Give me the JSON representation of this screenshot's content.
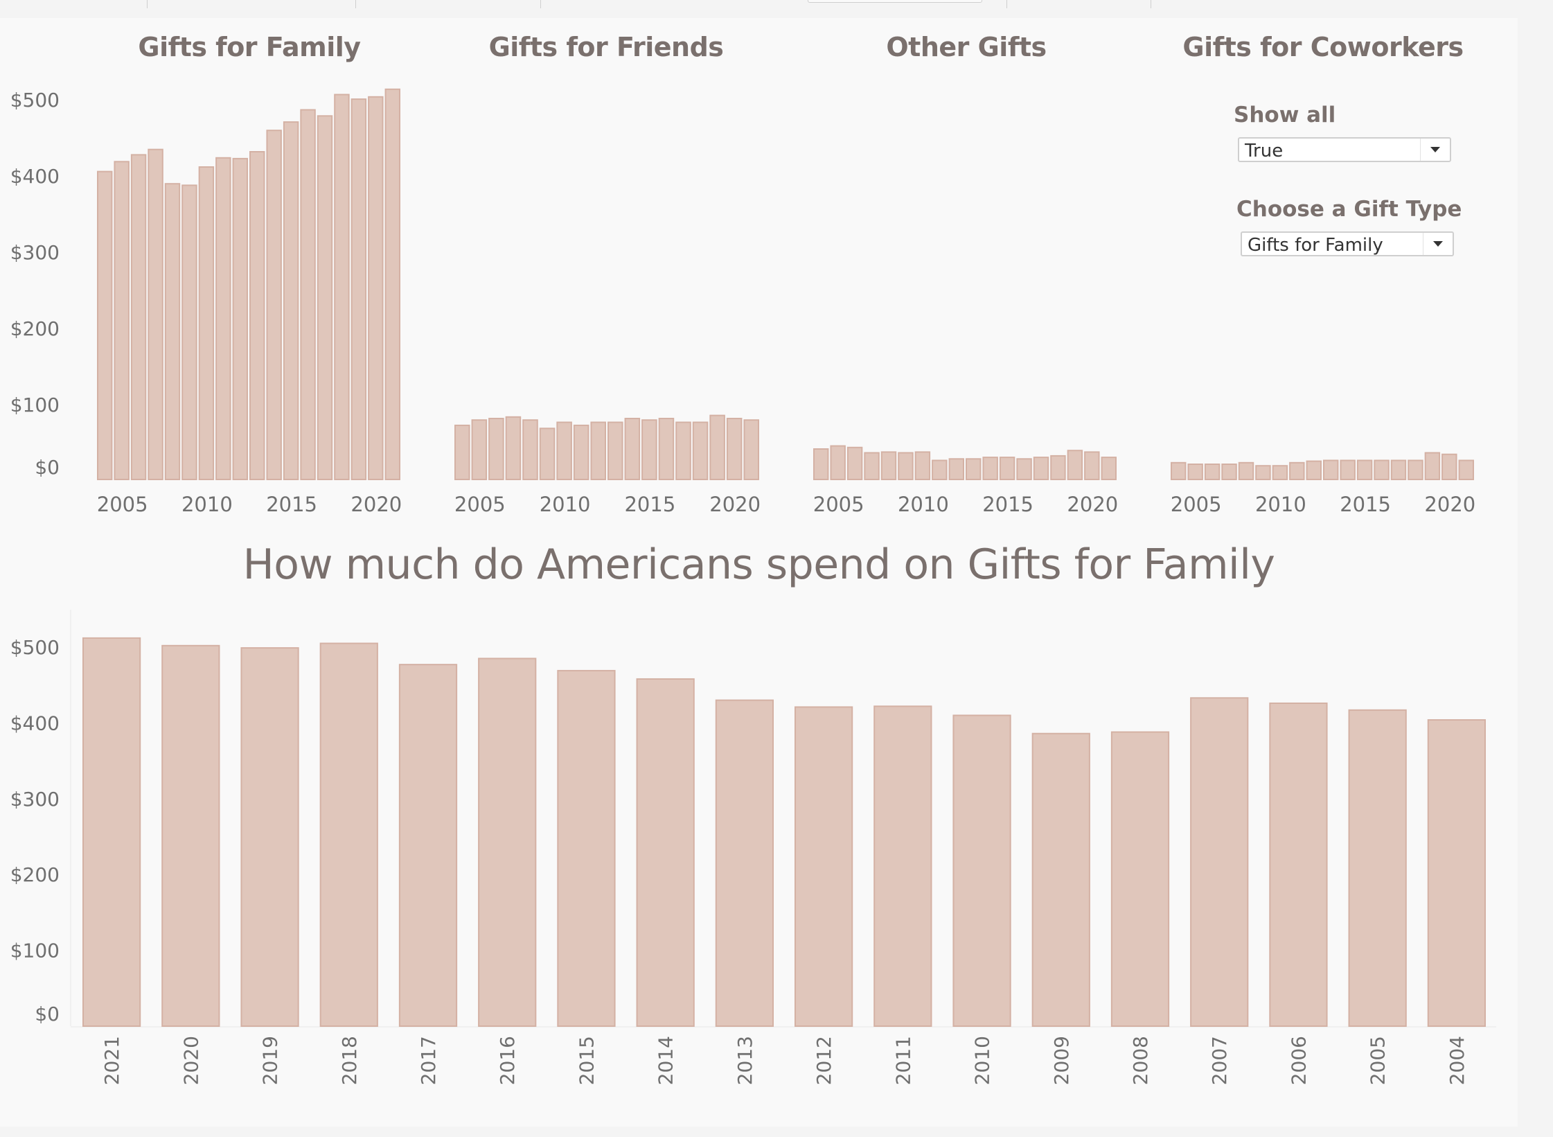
{
  "toolbar": {
    "dividers": 5
  },
  "colors": {
    "bar_fill": "#e0c6bb",
    "bar_stroke": "#d4b1a4",
    "text": "#7a706d",
    "axis_text": "#6f6f6f",
    "background": "#f9f9f9"
  },
  "controls": {
    "show_all": {
      "label": "Show all",
      "value": "True"
    },
    "gift_type": {
      "label": "Choose a Gift Type",
      "value": "Gifts for Family"
    }
  },
  "main_title": "How much do Americans spend on Gifts for Family",
  "chart_data": [
    {
      "type": "bar",
      "title": "Gifts for Family",
      "x": [
        2004,
        2005,
        2006,
        2007,
        2008,
        2009,
        2010,
        2011,
        2012,
        2013,
        2014,
        2015,
        2016,
        2017,
        2018,
        2019,
        2020,
        2021
      ],
      "values": [
        404,
        417,
        426,
        433,
        388,
        386,
        410,
        422,
        421,
        430,
        458,
        469,
        485,
        477,
        505,
        499,
        502,
        512
      ],
      "xticks": [
        "2005",
        "2010",
        "2015",
        "2020"
      ],
      "yticks": [
        "$0",
        "$100",
        "$200",
        "$300",
        "$400",
        "$500"
      ],
      "ylim": [
        0,
        500
      ],
      "xlabel": "",
      "ylabel": ""
    },
    {
      "type": "bar",
      "title": "Gifts for Friends",
      "x": [
        2004,
        2005,
        2006,
        2007,
        2008,
        2009,
        2010,
        2011,
        2012,
        2013,
        2014,
        2015,
        2016,
        2017,
        2018,
        2019,
        2020,
        2021
      ],
      "values": [
        71,
        78,
        80,
        82,
        78,
        67,
        75,
        71,
        75,
        75,
        80,
        78,
        80,
        75,
        75,
        84,
        80,
        78
      ],
      "xticks": [
        "2005",
        "2010",
        "2015",
        "2020"
      ],
      "ylim": [
        0,
        500
      ]
    },
    {
      "type": "bar",
      "title": "Other Gifts",
      "x": [
        2004,
        2005,
        2006,
        2007,
        2008,
        2009,
        2010,
        2011,
        2012,
        2013,
        2014,
        2015,
        2016,
        2017,
        2018,
        2019,
        2020,
        2021
      ],
      "values": [
        40,
        44,
        42,
        35,
        36,
        35,
        36,
        25,
        27,
        27,
        29,
        29,
        27,
        29,
        31,
        38,
        36,
        29
      ],
      "xticks": [
        "2005",
        "2010",
        "2015",
        "2020"
      ],
      "ylim": [
        0,
        500
      ]
    },
    {
      "type": "bar",
      "title": "Gifts for Coworkers",
      "x": [
        2004,
        2005,
        2006,
        2007,
        2008,
        2009,
        2010,
        2011,
        2012,
        2013,
        2014,
        2015,
        2016,
        2017,
        2018,
        2019,
        2020,
        2021
      ],
      "values": [
        22,
        20,
        20,
        20,
        22,
        18,
        18,
        22,
        24,
        25,
        25,
        25,
        25,
        25,
        25,
        35,
        33,
        25
      ],
      "xticks": [
        "2005",
        "2010",
        "2015",
        "2020"
      ],
      "ylim": [
        0,
        500
      ]
    },
    {
      "type": "bar",
      "title": "How much do Americans spend on Gifts for Family",
      "categories": [
        "2021",
        "2020",
        "2019",
        "2018",
        "2017",
        "2016",
        "2015",
        "2014",
        "2013",
        "2012",
        "2011",
        "2010",
        "2009",
        "2008",
        "2007",
        "2006",
        "2005",
        "2004"
      ],
      "values": [
        512,
        502,
        499,
        505,
        477,
        485,
        469,
        458,
        430,
        421,
        422,
        410,
        386,
        388,
        433,
        426,
        417,
        404
      ],
      "yticks": [
        "$0",
        "$100",
        "$200",
        "$300",
        "$400",
        "$500"
      ],
      "ylim": [
        0,
        500
      ],
      "xlabel": "",
      "ylabel": ""
    }
  ]
}
